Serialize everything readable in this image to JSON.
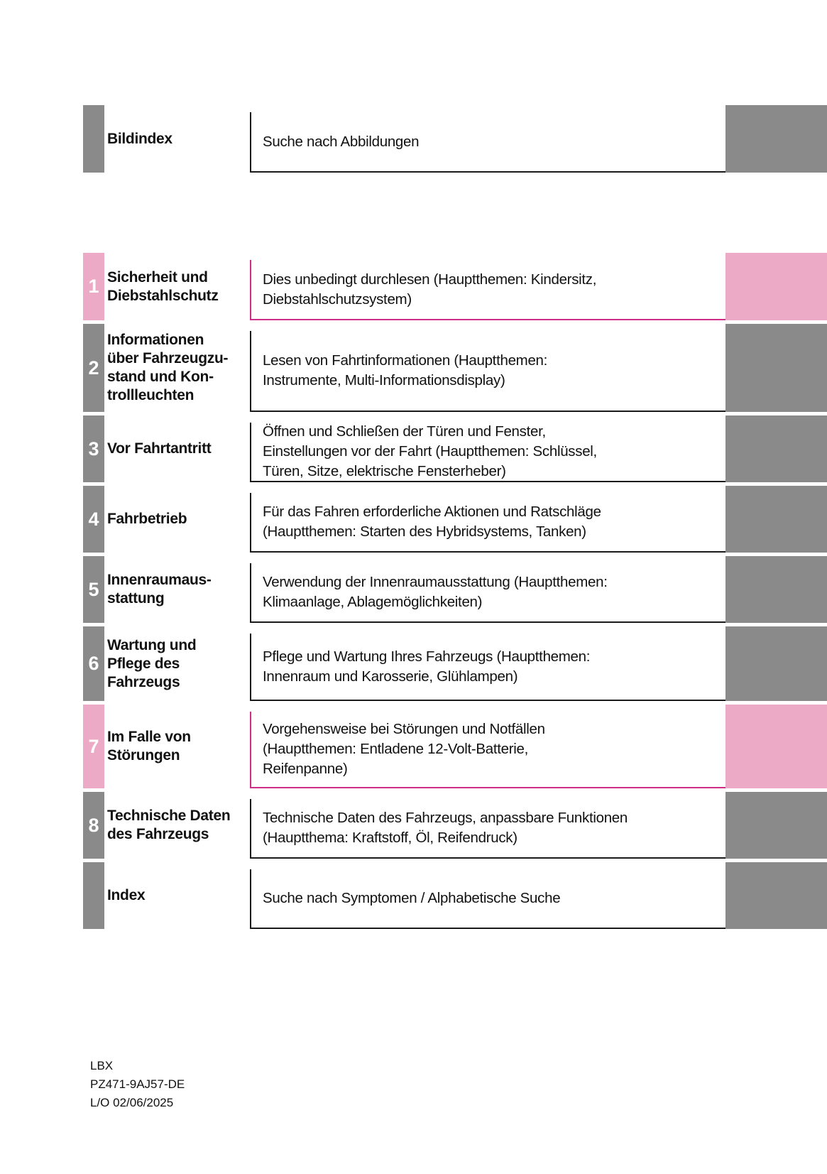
{
  "colors": {
    "gray_block": "#8a8a8a",
    "pink_block": "#edaac6",
    "pink_border": "#cf2e86",
    "dark_border": "#1a1a1a"
  },
  "toc": {
    "rows": [
      {
        "number": "",
        "label": "Bildindex",
        "description": "Suche nach Abbildungen",
        "theme": "gray"
      },
      {
        "number": "1",
        "label": "Sicherheit und\nDiebstahlschutz",
        "description": "Dies unbedingt durchlesen (Hauptthemen: Kindersitz,\nDiebstahlschutzsystem)",
        "theme": "pink"
      },
      {
        "number": "2",
        "label": "Informationen\nüber Fahrzeugzu-\nstand und Kon-\ntrollleuchten",
        "description": "Lesen von Fahrtinformationen (Hauptthemen:\nInstrumente, Multi-Informationsdisplay)",
        "theme": "gray"
      },
      {
        "number": "3",
        "label": "Vor Fahrtantritt",
        "description": "Öffnen und Schließen der Türen und Fenster,\nEinstellungen vor der Fahrt (Hauptthemen: Schlüssel,\nTüren, Sitze, elektrische Fensterheber)",
        "theme": "gray"
      },
      {
        "number": "4",
        "label": "Fahrbetrieb",
        "description": "Für das Fahren erforderliche Aktionen und Ratschläge\n(Hauptthemen: Starten des Hybridsystems, Tanken)",
        "theme": "gray"
      },
      {
        "number": "5",
        "label": "Innenraumaus-\nstattung",
        "description": "Verwendung der Innenraumausstattung (Hauptthemen:\nKlimaanlage, Ablagemöglichkeiten)",
        "theme": "gray"
      },
      {
        "number": "6",
        "label": "Wartung und\nPflege des\nFahrzeugs",
        "description": "Pflege und Wartung Ihres Fahrzeugs (Hauptthemen:\nInnenraum und Karosserie, Glühlampen)",
        "theme": "gray"
      },
      {
        "number": "7",
        "label": "Im Falle von\nStörungen",
        "description": "Vorgehensweise bei Störungen und Notfällen\n(Hauptthemen: Entladene 12-Volt-Batterie,\nReifenpanne)",
        "theme": "pink"
      },
      {
        "number": "8",
        "label": "Technische Daten\ndes Fahrzeugs",
        "description": "Technische Daten des Fahrzeugs, anpassbare Funktionen\n(Hauptthema: Kraftstoff, Öl, Reifendruck)",
        "theme": "gray"
      },
      {
        "number": "",
        "label": "Index",
        "description": "Suche nach Symptomen / Alphabetische Suche",
        "theme": "gray"
      }
    ]
  },
  "footer": {
    "lines": [
      "LBX",
      "PZ471-9AJ57-DE",
      "L/O 02/06/2025"
    ]
  }
}
